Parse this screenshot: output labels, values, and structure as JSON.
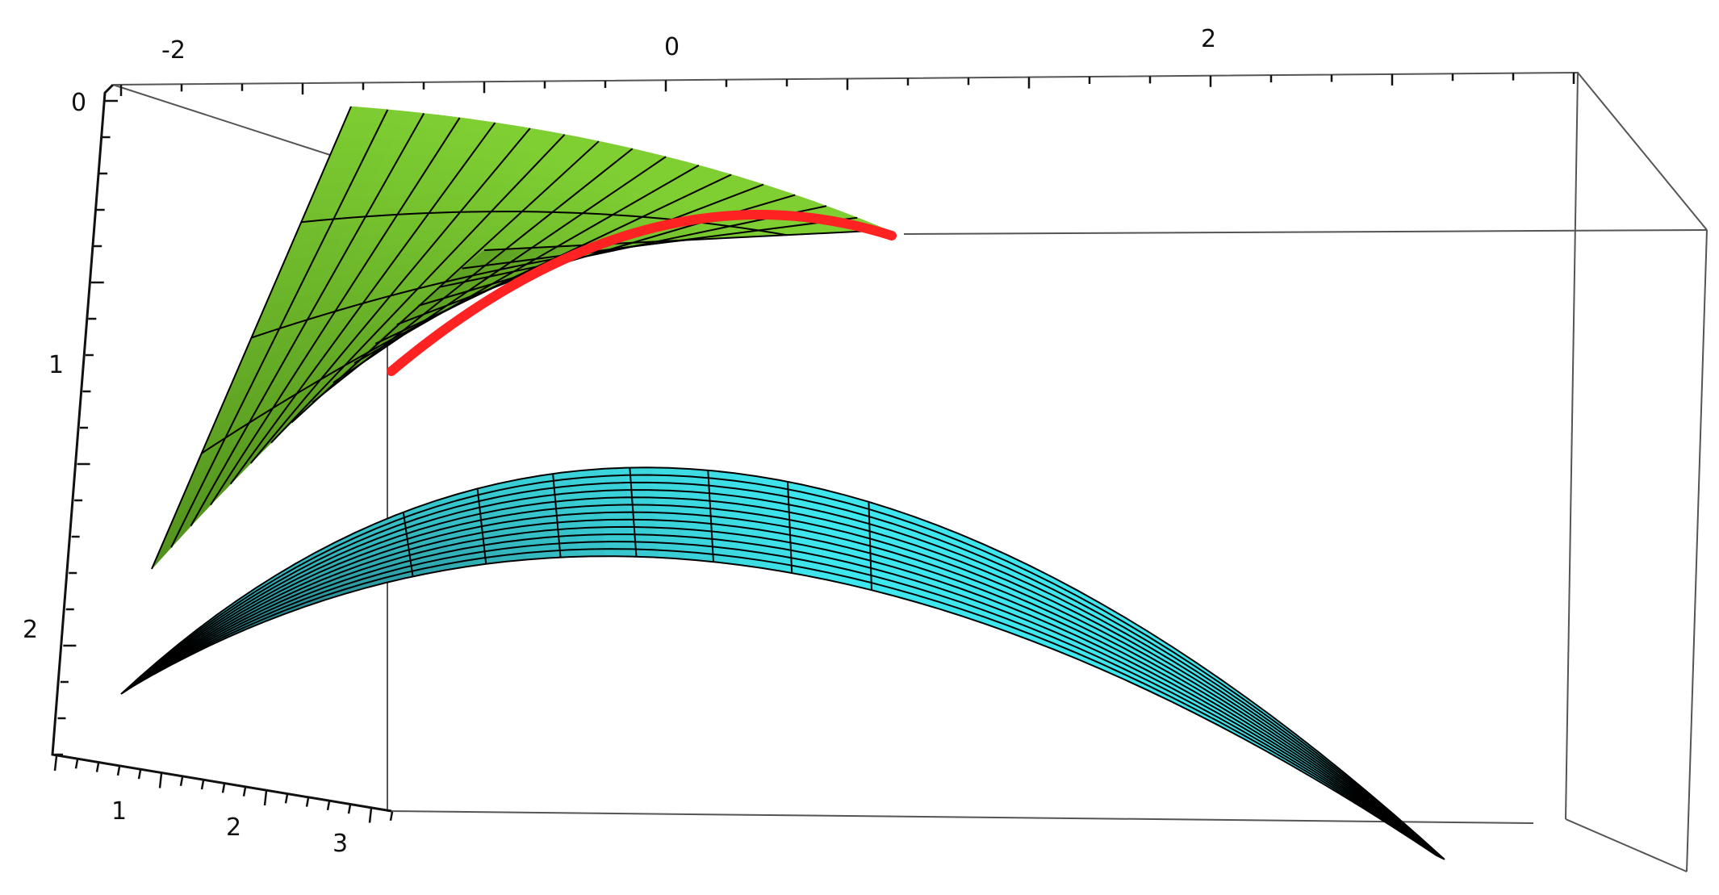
{
  "chart_data": {
    "type": "surface3d",
    "title": "",
    "surfaces": [
      {
        "id": "upper",
        "color": "#7fcf33",
        "shade_color": "#4f8f1c"
      },
      {
        "id": "lower",
        "color": "#3fe6ee",
        "shade_color": "#1f5f66"
      }
    ],
    "curve": {
      "color": "#ff2222"
    },
    "axes": {
      "top": {
        "ticks": [
          "-2",
          "0",
          "2"
        ],
        "range": [
          -2.5,
          2.9
        ]
      },
      "left": {
        "ticks": [
          "0",
          "1",
          "2"
        ],
        "range": [
          0,
          2.5
        ]
      },
      "bottom": {
        "ticks": [
          "1",
          "2",
          "3"
        ],
        "range": [
          0.5,
          3.4
        ]
      }
    },
    "box": {
      "color": "#555555"
    }
  }
}
